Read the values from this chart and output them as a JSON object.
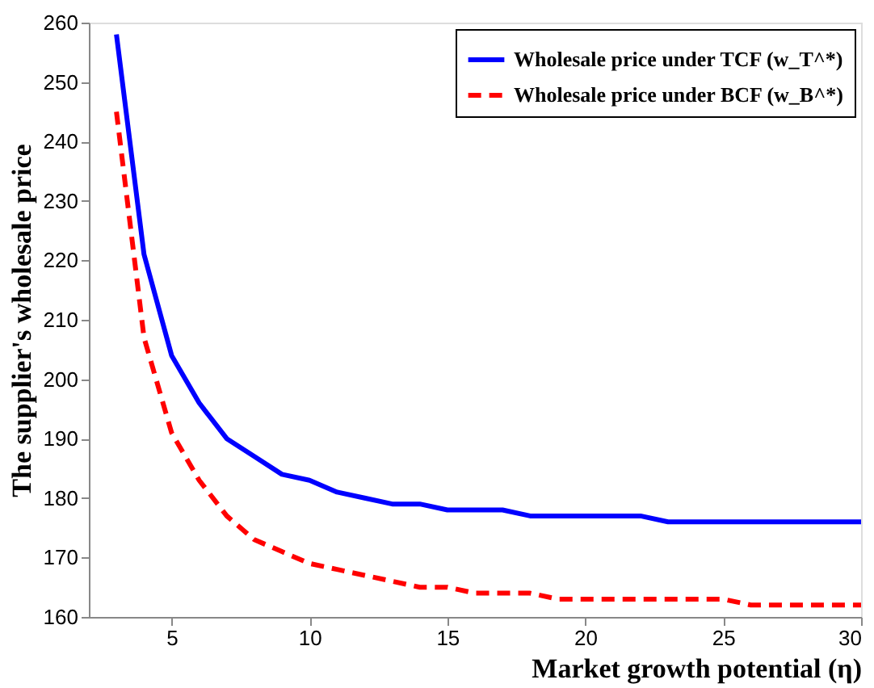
{
  "chart_data": {
    "type": "line",
    "xlabel": "Market growth potential (η)",
    "ylabel": "The supplier's wholesale price",
    "x": [
      3,
      4,
      5,
      6,
      7,
      8,
      9,
      10,
      11,
      12,
      13,
      14,
      15,
      16,
      17,
      18,
      19,
      20,
      21,
      22,
      23,
      24,
      25,
      26,
      27,
      28,
      29,
      30
    ],
    "series": [
      {
        "name": "Wholesale price under TCF (w_T^*)",
        "color": "#0000ff",
        "line_style": "solid",
        "values": [
          258,
          221,
          204,
          196,
          190,
          187,
          184,
          183,
          181,
          180,
          179,
          179,
          178,
          178,
          178,
          177,
          177,
          177,
          177,
          177,
          176,
          176,
          176,
          176,
          176,
          176,
          176,
          176
        ]
      },
      {
        "name": "Wholesale price under BCF (w_B^*)",
        "color": "#ff0000",
        "line_style": "dashed",
        "values": [
          245,
          207,
          191,
          183,
          177,
          173,
          171,
          169,
          168,
          167,
          166,
          165,
          165,
          164,
          164,
          164,
          163,
          163,
          163,
          163,
          163,
          163,
          163,
          162,
          162,
          162,
          162,
          162
        ]
      }
    ],
    "xlim": [
      2,
      30
    ],
    "xticks": [
      5,
      10,
      15,
      20,
      25,
      30
    ],
    "ylim": [
      160,
      260
    ],
    "yticks": [
      160,
      170,
      180,
      190,
      200,
      210,
      220,
      230,
      240,
      250,
      260
    ],
    "grid": false,
    "legend": "top right",
    "marker": "none"
  }
}
